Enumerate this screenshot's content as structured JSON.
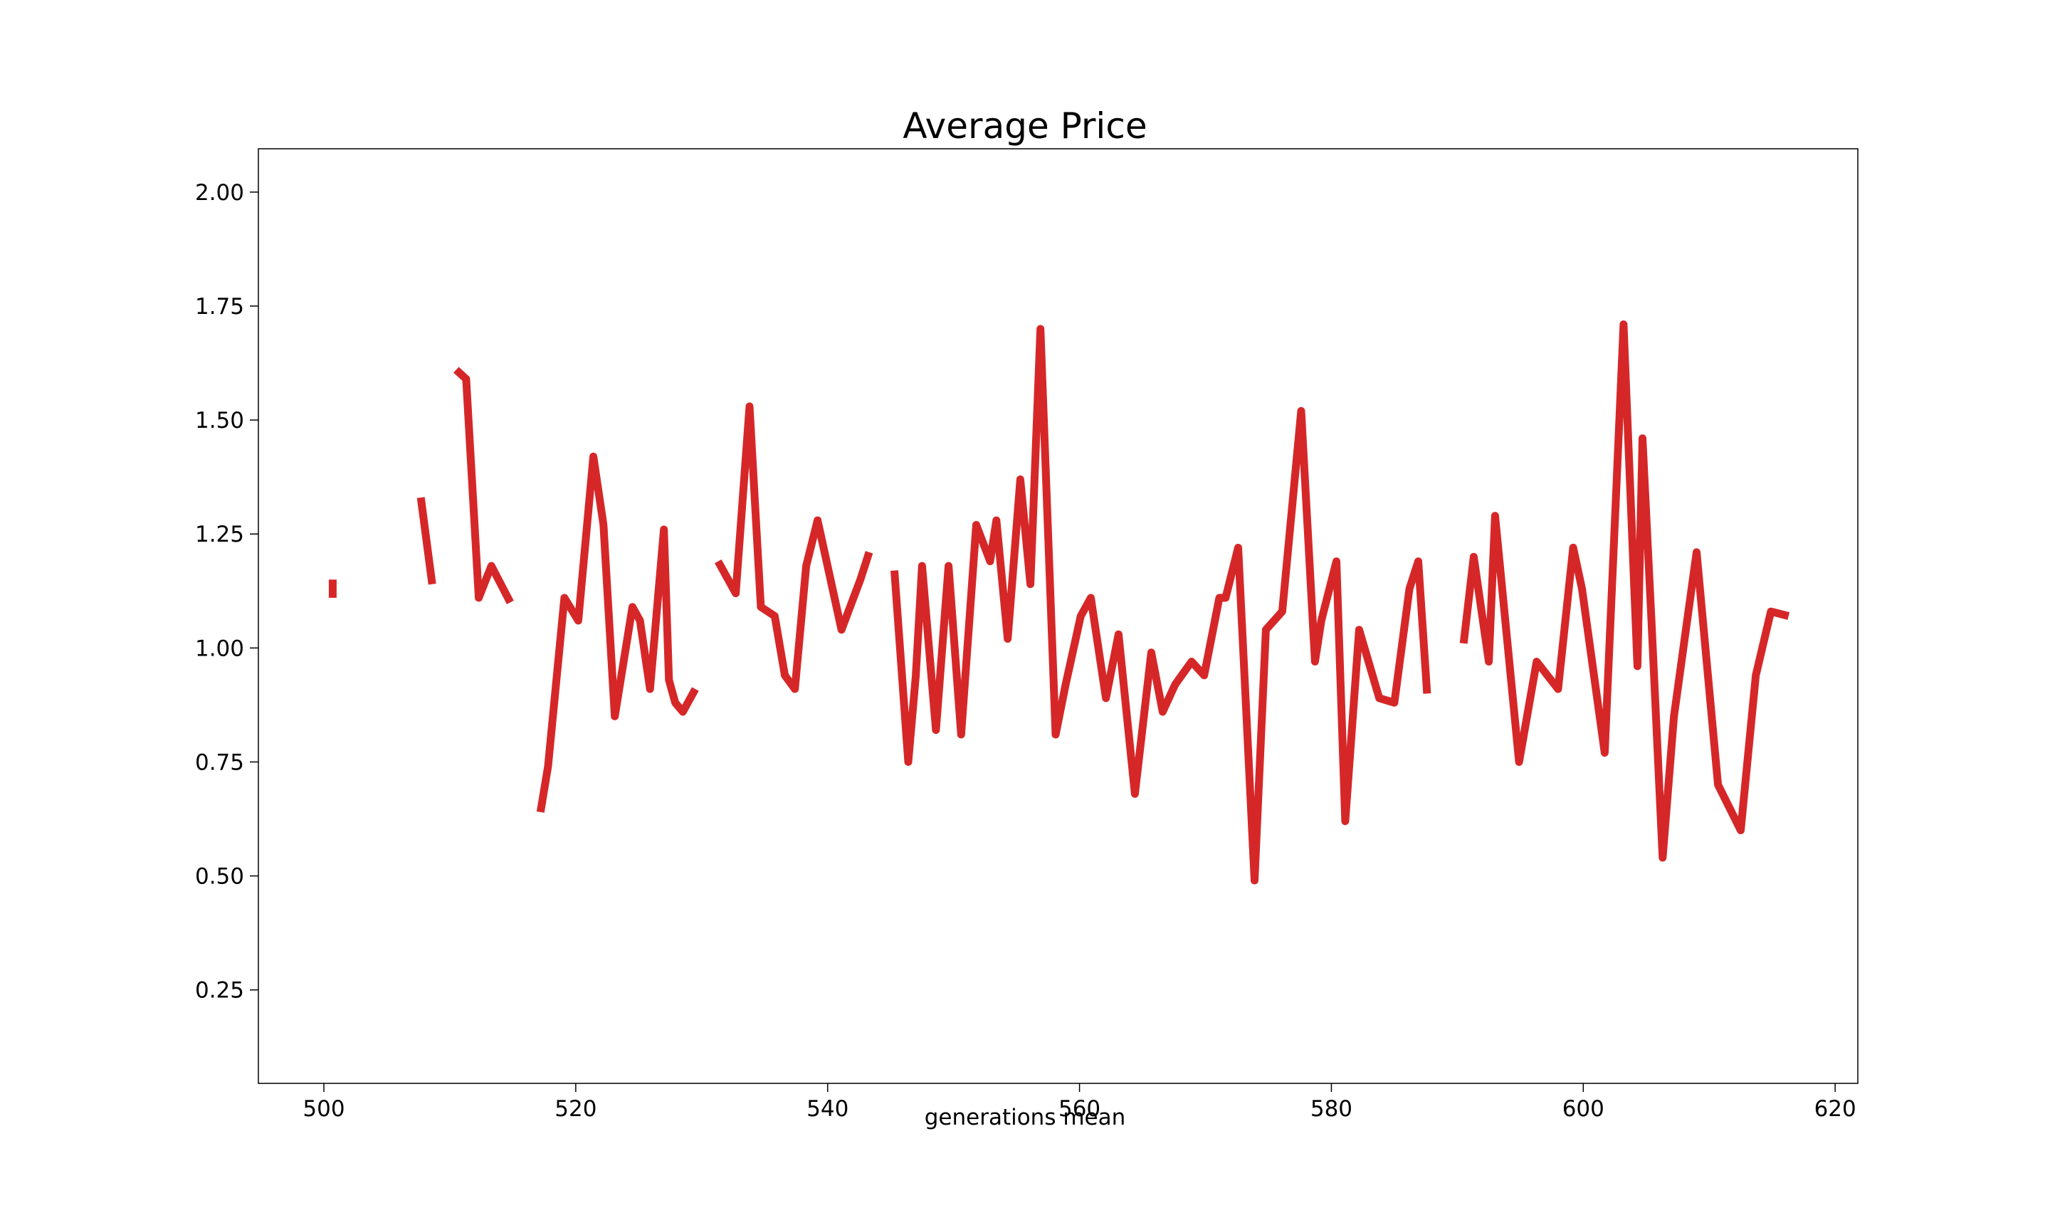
{
  "chart_data": {
    "type": "line",
    "title": "Average Price",
    "xlabel": "generations mean",
    "ylabel": "",
    "xlim": [
      494.8,
      621.8
    ],
    "ylim": [
      0.045,
      2.095
    ],
    "x_ticks": [
      500,
      520,
      540,
      560,
      580,
      600,
      620
    ],
    "y_ticks": [
      0.25,
      0.5,
      0.75,
      1.0,
      1.25,
      1.5,
      1.75,
      2.0
    ],
    "grid": false,
    "line_color": "#d62728",
    "series": [
      {
        "name": "",
        "segments": [
          [
            [
              500.7,
              1.15
            ],
            [
              500.7,
              1.11
            ]
          ],
          [
            [
              507.7,
              1.33
            ],
            [
              508.6,
              1.14
            ]
          ],
          [
            [
              510.5,
              1.61
            ],
            [
              511.3,
              1.59
            ],
            [
              512.3,
              1.11
            ],
            [
              513.3,
              1.18
            ],
            [
              514.8,
              1.1
            ]
          ],
          [
            [
              517.2,
              0.64
            ],
            [
              517.8,
              0.74
            ],
            [
              519.1,
              1.11
            ],
            [
              520.2,
              1.06
            ],
            [
              521.4,
              1.42
            ],
            [
              522.2,
              1.27
            ],
            [
              523.1,
              0.85
            ],
            [
              524.5,
              1.09
            ],
            [
              525.1,
              1.06
            ],
            [
              525.9,
              0.91
            ],
            [
              527.0,
              1.26
            ],
            [
              527.4,
              0.93
            ],
            [
              527.9,
              0.88
            ],
            [
              528.5,
              0.86
            ],
            [
              529.5,
              0.91
            ]
          ],
          [
            [
              531.3,
              1.19
            ],
            [
              532.7,
              1.12
            ],
            [
              533.8,
              1.53
            ],
            [
              534.7,
              1.09
            ],
            [
              535.8,
              1.07
            ],
            [
              536.6,
              0.94
            ],
            [
              537.4,
              0.91
            ],
            [
              538.3,
              1.18
            ],
            [
              539.2,
              1.28
            ],
            [
              541.1,
              1.04
            ],
            [
              542.6,
              1.15
            ],
            [
              543.3,
              1.21
            ]
          ],
          [
            [
              545.3,
              1.17
            ],
            [
              546.4,
              0.75
            ],
            [
              547.0,
              0.94
            ],
            [
              547.5,
              1.18
            ],
            [
              548.6,
              0.82
            ],
            [
              549.6,
              1.18
            ],
            [
              550.6,
              0.81
            ],
            [
              551.8,
              1.27
            ],
            [
              552.9,
              1.19
            ],
            [
              553.4,
              1.28
            ],
            [
              554.3,
              1.02
            ],
            [
              555.3,
              1.37
            ],
            [
              556.1,
              1.14
            ],
            [
              556.9,
              1.7
            ],
            [
              558.1,
              0.81
            ],
            [
              558.9,
              0.92
            ],
            [
              560.1,
              1.07
            ],
            [
              560.9,
              1.11
            ],
            [
              562.1,
              0.89
            ],
            [
              563.1,
              1.03
            ],
            [
              564.4,
              0.68
            ],
            [
              565.7,
              0.99
            ],
            [
              566.6,
              0.86
            ],
            [
              567.6,
              0.92
            ],
            [
              568.9,
              0.97
            ],
            [
              569.9,
              0.94
            ],
            [
              571.1,
              1.11
            ],
            [
              571.6,
              1.11
            ],
            [
              572.6,
              1.22
            ],
            [
              573.9,
              0.49
            ],
            [
              574.8,
              1.04
            ],
            [
              576.1,
              1.08
            ],
            [
              577.6,
              1.52
            ],
            [
              578.7,
              0.97
            ],
            [
              579.2,
              1.06
            ],
            [
              580.4,
              1.19
            ],
            [
              581.1,
              0.62
            ],
            [
              582.2,
              1.04
            ],
            [
              583.8,
              0.89
            ],
            [
              585.0,
              0.88
            ],
            [
              586.2,
              1.13
            ],
            [
              586.9,
              1.19
            ],
            [
              587.6,
              0.9
            ]
          ],
          [
            [
              590.5,
              1.01
            ],
            [
              591.3,
              1.2
            ],
            [
              592.5,
              0.97
            ],
            [
              593.0,
              1.29
            ],
            [
              594.9,
              0.75
            ],
            [
              596.3,
              0.97
            ],
            [
              598.0,
              0.91
            ],
            [
              599.2,
              1.22
            ],
            [
              599.9,
              1.13
            ],
            [
              601.7,
              0.77
            ],
            [
              603.2,
              1.71
            ],
            [
              604.3,
              0.96
            ],
            [
              604.7,
              1.46
            ],
            [
              605.4,
              1.07
            ],
            [
              606.3,
              0.54
            ],
            [
              607.2,
              0.85
            ],
            [
              609.0,
              1.21
            ],
            [
              610.7,
              0.7
            ],
            [
              612.5,
              0.6
            ],
            [
              613.7,
              0.94
            ],
            [
              614.9,
              1.08
            ],
            [
              616.3,
              1.07
            ]
          ]
        ]
      }
    ]
  }
}
